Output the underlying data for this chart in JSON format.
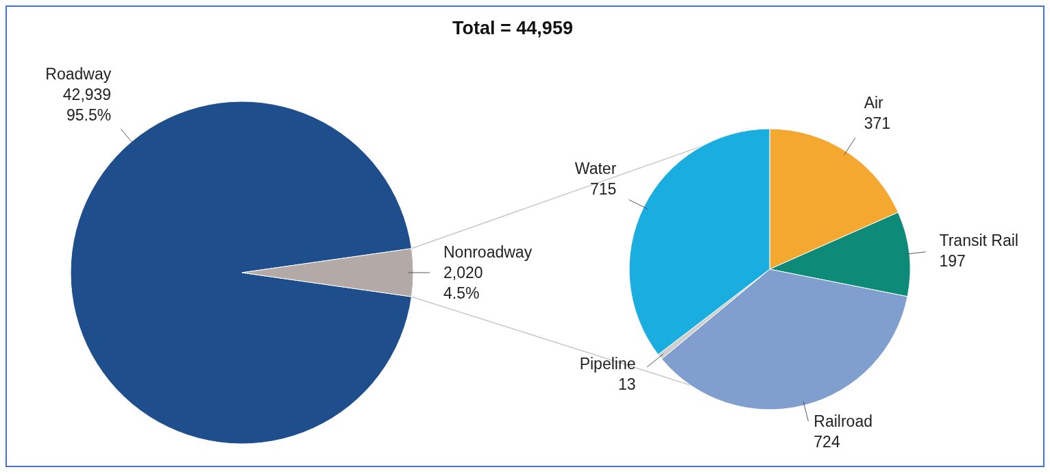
{
  "chart_data": [
    {
      "type": "pie",
      "title": "Total = 44,959",
      "categories": [
        "Roadway",
        "Nonroadway"
      ],
      "values": [
        42939,
        2020
      ],
      "colors": [
        "#1f4e8c",
        "#b3a9a6"
      ],
      "value_labels": [
        "42,939\n95.5%",
        "2,020\n4.5%"
      ]
    },
    {
      "type": "pie",
      "categories": [
        "Air",
        "Transit Rail",
        "Railroad",
        "Pipeline",
        "Water"
      ],
      "values": [
        371,
        197,
        724,
        13,
        715
      ],
      "colors": [
        "#f5a830",
        "#0e8a78",
        "#809fcf",
        "#cfcfcf",
        "#1aaee0"
      ],
      "data_labels": true
    }
  ]
}
